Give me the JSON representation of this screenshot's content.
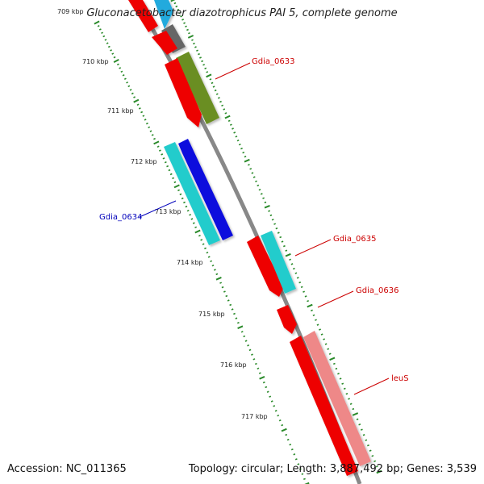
{
  "title": "Gluconacetobacter diazotrophicus PAI 5, complete genome",
  "accession_text": "Accession: NC_011365",
  "summary_text": "Topology: circular; Length: 3,887,492 bp; Genes: 3,539",
  "scale_labels": [
    "709 kbp",
    "710 kbp",
    "711 kbp",
    "712 kbp",
    "713 kbp",
    "714 kbp",
    "715 kbp",
    "716 kbp",
    "717 kbp"
  ],
  "genes": [
    {
      "name": "Gdia_0633",
      "color": "#cc0000"
    },
    {
      "name": "Gdia_0634",
      "color": "#0000bb"
    },
    {
      "name": "Gdia_0635",
      "color": "#cc0000"
    },
    {
      "name": "Gdia_0636",
      "color": "#cc0000"
    },
    {
      "name": "leuS",
      "color": "#cc0000"
    }
  ],
  "colors": {
    "backbone": "#888888",
    "tick": "#2a8a2a",
    "red": "#ee0000",
    "cyan": "#22cccc",
    "blue": "#1111dd",
    "olive": "#6b8e23",
    "gray": "#666666",
    "pink": "#ee8888",
    "skyblue": "#22aadd"
  }
}
